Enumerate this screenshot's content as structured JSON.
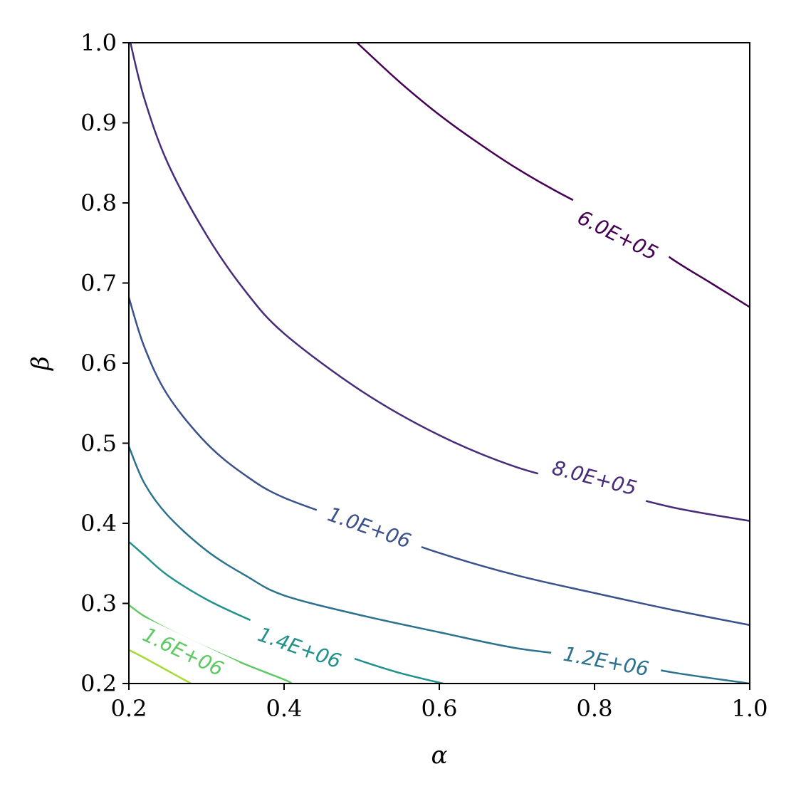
{
  "chart_data": {
    "type": "contour",
    "title": "",
    "xlabel": "α",
    "ylabel": "β",
    "xlim": [
      0.2,
      1.0
    ],
    "ylim": [
      0.2,
      1.0
    ],
    "x_ticks": [
      "0.2",
      "0.4",
      "0.6",
      "0.8",
      "1.0"
    ],
    "y_ticks": [
      "0.2",
      "0.3",
      "0.4",
      "0.5",
      "0.6",
      "0.7",
      "0.8",
      "0.9",
      "1.0"
    ],
    "grid": false,
    "colormap": "viridis",
    "levels": [
      {
        "value": 600000,
        "label": "6.0E+05",
        "color": "#440154",
        "points": [
          [
            0.494,
            1.0
          ],
          [
            0.55,
            0.95
          ],
          [
            0.6,
            0.91
          ],
          [
            0.65,
            0.875
          ],
          [
            0.7,
            0.843
          ],
          [
            0.75,
            0.815
          ],
          [
            0.8,
            0.79
          ],
          [
            0.85,
            0.766
          ],
          [
            0.9,
            0.73
          ],
          [
            0.95,
            0.7
          ],
          [
            1.0,
            0.67
          ]
        ],
        "label_at": [
          0.83,
          0.76
        ]
      },
      {
        "value": 800000,
        "label": "8.0E+05",
        "color": "#472c7a",
        "points": [
          [
            0.202,
            1.0
          ],
          [
            0.22,
            0.93
          ],
          [
            0.25,
            0.85
          ],
          [
            0.3,
            0.76
          ],
          [
            0.35,
            0.69
          ],
          [
            0.4,
            0.637
          ],
          [
            0.5,
            0.565
          ],
          [
            0.6,
            0.51
          ],
          [
            0.7,
            0.47
          ],
          [
            0.8,
            0.445
          ],
          [
            0.9,
            0.42
          ],
          [
            1.0,
            0.403
          ]
        ],
        "label_at": [
          0.8,
          0.457
        ]
      },
      {
        "value": 1000000,
        "label": "1.0E+06",
        "color": "#3b518b",
        "points": [
          [
            0.2,
            0.682
          ],
          [
            0.22,
            0.62
          ],
          [
            0.25,
            0.56
          ],
          [
            0.3,
            0.5
          ],
          [
            0.35,
            0.46
          ],
          [
            0.4,
            0.432
          ],
          [
            0.5,
            0.397
          ],
          [
            0.6,
            0.363
          ],
          [
            0.7,
            0.335
          ],
          [
            0.8,
            0.313
          ],
          [
            0.9,
            0.292
          ],
          [
            1.0,
            0.273
          ]
        ],
        "label_at": [
          0.51,
          0.395
        ]
      },
      {
        "value": 1200000,
        "label": "1.2E+06",
        "color": "#2c718e",
        "points": [
          [
            0.2,
            0.496
          ],
          [
            0.22,
            0.45
          ],
          [
            0.25,
            0.41
          ],
          [
            0.3,
            0.366
          ],
          [
            0.35,
            0.335
          ],
          [
            0.4,
            0.31
          ],
          [
            0.5,
            0.285
          ],
          [
            0.6,
            0.264
          ],
          [
            0.7,
            0.244
          ],
          [
            0.8,
            0.232
          ],
          [
            0.9,
            0.214
          ],
          [
            1.0,
            0.2
          ]
        ],
        "label_at": [
          0.815,
          0.228
        ]
      },
      {
        "value": 1400000,
        "label": "1.4E+06",
        "color": "#21918c",
        "points": [
          [
            0.2,
            0.377
          ],
          [
            0.22,
            0.36
          ],
          [
            0.25,
            0.335
          ],
          [
            0.3,
            0.305
          ],
          [
            0.35,
            0.282
          ],
          [
            0.4,
            0.262
          ],
          [
            0.45,
            0.245
          ],
          [
            0.5,
            0.228
          ],
          [
            0.55,
            0.213
          ],
          [
            0.605,
            0.2
          ]
        ],
        "label_at": [
          0.42,
          0.245
        ]
      },
      {
        "value": 1600000,
        "label": "1.6E+06",
        "color": "#5ec962",
        "points": [
          [
            0.2,
            0.298
          ],
          [
            0.22,
            0.284
          ],
          [
            0.25,
            0.268
          ],
          [
            0.3,
            0.245
          ],
          [
            0.35,
            0.224
          ],
          [
            0.4,
            0.205
          ],
          [
            0.41,
            0.2
          ]
        ],
        "label_at": [
          0.27,
          0.24
        ]
      },
      {
        "value": 1800000,
        "label": "",
        "color": "#a5db36",
        "points": [
          [
            0.2,
            0.242
          ],
          [
            0.22,
            0.232
          ],
          [
            0.25,
            0.216
          ],
          [
            0.28,
            0.2
          ]
        ],
        "label_at": null
      }
    ]
  }
}
